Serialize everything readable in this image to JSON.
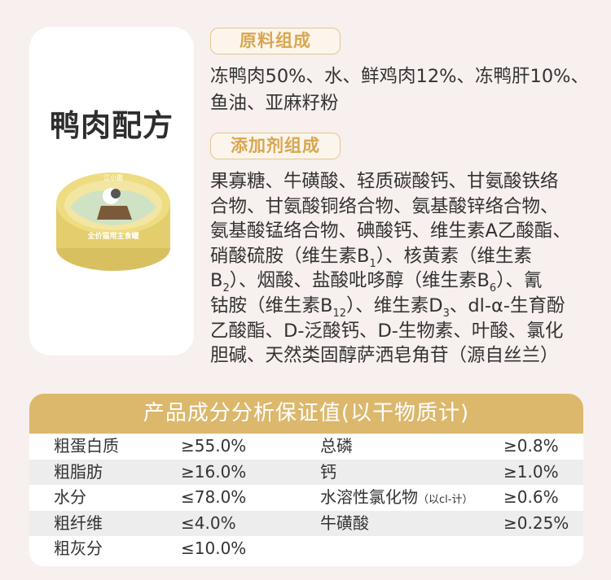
{
  "product": {
    "title": "鸭肉配方",
    "can_brand": "江小傲",
    "can_label": "全价猫用主食罐"
  },
  "ingredients": {
    "heading": "原料组成",
    "lines": [
      "冻鸭肉50%、水、鲜鸡肉12%、冻鸭肝10%、",
      "鱼油、亚麻籽粉"
    ]
  },
  "additives": {
    "heading": "添加剂组成",
    "lines": [
      [
        {
          "t": "果寡糖、牛磺酸、轻质碳酸钙、甘氨酸铁络"
        }
      ],
      [
        {
          "t": "合物、甘氨酸铜络合物、氨基酸锌络合物、"
        }
      ],
      [
        {
          "t": "氨基酸锰络合物、碘酸钙、维生素A乙酸酯、"
        }
      ],
      [
        {
          "t": "硝酸硫胺（维生素B"
        },
        {
          "t": "1",
          "sub": true
        },
        {
          "t": "）、核黄素（维生素"
        }
      ],
      [
        {
          "t": "B"
        },
        {
          "t": "2",
          "sub": true
        },
        {
          "t": "）、烟酸、盐酸吡哆醇（维生素B"
        },
        {
          "t": "6",
          "sub": true
        },
        {
          "t": "）、氰"
        }
      ],
      [
        {
          "t": "钴胺（维生素B"
        },
        {
          "t": "12",
          "sub": true
        },
        {
          "t": "）、维生素D"
        },
        {
          "t": "3",
          "sub": true
        },
        {
          "t": "、dl-α-生育酚"
        }
      ],
      [
        {
          "t": "乙酸酯、D-泛酸钙、D-生物素、叶酸、氯化"
        }
      ],
      [
        {
          "t": "胆碱、天然类固醇萨洒皂角苷（源自丝兰）"
        }
      ]
    ]
  },
  "analysis": {
    "heading": "产品成分分析保证值(以干物质计)",
    "rows": [
      {
        "name": "粗蛋白质",
        "value": "≥55.0%",
        "name2": "总磷",
        "note2": "",
        "value2": "≥0.8%"
      },
      {
        "name": "粗脂肪",
        "value": "≥16.0%",
        "name2": "钙",
        "note2": "",
        "value2": "≥1.0%"
      },
      {
        "name": "水分",
        "value": "≤78.0%",
        "name2": "水溶性氯化物",
        "note2": "（以cl-计）",
        "value2": "≥0.6%"
      },
      {
        "name": "粗纤维",
        "value": "≤4.0%",
        "name2": "牛磺酸",
        "note2": "",
        "value2": "≥0.25%"
      },
      {
        "name": "粗灰分",
        "value": "≤10.0%",
        "name2": "",
        "note2": "",
        "value2": ""
      }
    ]
  },
  "colors": {
    "accent": "#dcb86c",
    "badge_text": "#d9a650",
    "background": "#f8f0ee"
  }
}
